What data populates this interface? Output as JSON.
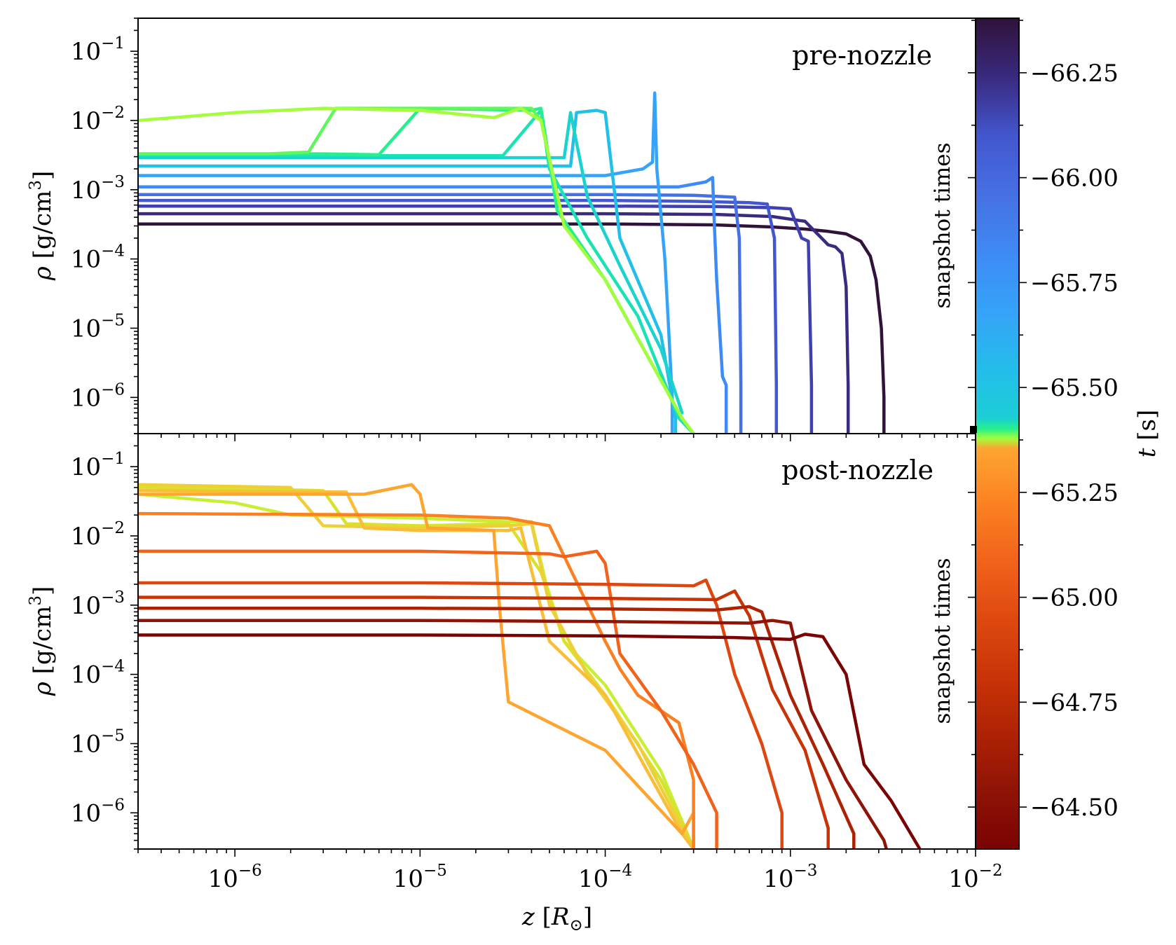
{
  "chart_data": [
    {
      "type": "line",
      "panel": "top",
      "annotation": "pre-nozzle",
      "xlabel": "z [R⊙]",
      "ylabel": "ρ [g/cm³]",
      "xscale": "log",
      "yscale": "log",
      "xlim": [
        3e-07,
        0.01
      ],
      "ylim": [
        3e-07,
        0.3
      ],
      "x_ticks": [
        {
          "value": 1e-06,
          "base": "10",
          "exp": "−6"
        },
        {
          "value": 1e-05,
          "base": "10",
          "exp": "−5"
        },
        {
          "value": 0.0001,
          "base": "10",
          "exp": "−4"
        },
        {
          "value": 0.001,
          "base": "10",
          "exp": "−3"
        },
        {
          "value": 0.01,
          "base": "10",
          "exp": "−2"
        }
      ],
      "y_ticks": [
        {
          "value": 1e-06,
          "base": "10",
          "exp": "−6"
        },
        {
          "value": 1e-05,
          "base": "10",
          "exp": "−5"
        },
        {
          "value": 0.0001,
          "base": "10",
          "exp": "−4"
        },
        {
          "value": 0.001,
          "base": "10",
          "exp": "−3"
        },
        {
          "value": 0.01,
          "base": "10",
          "exp": "−2"
        },
        {
          "value": 0.1,
          "base": "10",
          "exp": "−1"
        }
      ],
      "series": [
        {
          "color": "#30123b",
          "x": [
            3e-07,
            1e-05,
            0.0001,
            0.0004,
            0.0008,
            0.0012,
            0.0016,
            0.002,
            0.0024,
            0.0027,
            0.0029,
            0.0031,
            0.0032,
            0.0032
          ],
          "y": [
            0.00032,
            0.00032,
            0.00032,
            0.00031,
            0.00029,
            0.00027,
            0.00025,
            0.00023,
            0.00018,
            0.00011,
            5e-05,
            1e-05,
            1e-06,
            3e-07
          ]
        },
        {
          "color": "#3a2a80",
          "x": [
            3e-07,
            1e-05,
            0.0001,
            0.0004,
            0.0008,
            0.0012,
            0.0016,
            0.00175,
            0.0019,
            0.002,
            0.00205,
            0.00205
          ],
          "y": [
            0.00045,
            0.00045,
            0.00045,
            0.00044,
            0.00041,
            0.00035,
            0.00016,
            0.00015,
            0.00012,
            4e-05,
            1.5e-06,
            3e-07
          ]
        },
        {
          "color": "#4040b0",
          "x": [
            3e-07,
            1e-05,
            0.0001,
            0.0004,
            0.0008,
            0.001,
            0.00115,
            0.00125,
            0.0013,
            0.0013
          ],
          "y": [
            0.00058,
            0.00058,
            0.00058,
            0.00057,
            0.00055,
            0.00053,
            0.0002,
            0.00018,
            1.5e-06,
            3e-07
          ]
        },
        {
          "color": "#4357cf",
          "x": [
            3e-07,
            1e-05,
            0.0001,
            0.0003,
            0.0006,
            0.00075,
            0.00082,
            0.00084,
            0.00084
          ],
          "y": [
            0.0007,
            0.0007,
            0.0007,
            0.00068,
            0.00065,
            0.00062,
            0.0002,
            1.5e-06,
            3e-07
          ]
        },
        {
          "color": "#4671e3",
          "x": [
            3e-07,
            1e-05,
            0.0001,
            0.0003,
            0.0005,
            0.00053,
            0.00054,
            0.00054
          ],
          "y": [
            0.00085,
            0.00085,
            0.00085,
            0.00083,
            0.00078,
            0.0002,
            1.5e-06,
            3e-07
          ]
        },
        {
          "color": "#3e8bf5",
          "x": [
            3e-07,
            1e-05,
            0.0001,
            0.00025,
            0.00035,
            0.00038,
            0.00039,
            0.0004,
            0.00043,
            0.00045,
            0.00045
          ],
          "y": [
            0.0011,
            0.0011,
            0.0011,
            0.0011,
            0.0013,
            0.0015,
            0.00025,
            5e-05,
            2e-06,
            1.5e-06,
            3e-07
          ]
        },
        {
          "color": "#35a4f8",
          "x": [
            3e-07,
            1e-05,
            0.0001,
            0.00016,
            0.00018,
            0.000185,
            0.00019,
            0.00021,
            0.00022,
            0.00023,
            0.00023
          ],
          "y": [
            0.0016,
            0.0016,
            0.0016,
            0.002,
            0.0025,
            0.025,
            0.002,
            0.0001,
            1e-05,
            1e-06,
            3e-07
          ]
        },
        {
          "color": "#22bfe8",
          "x": [
            3e-07,
            1e-05,
            6.5e-05,
            7e-05,
            9e-05,
            0.0001,
            0.00012,
            0.0002,
            0.00024,
            0.00024
          ],
          "y": [
            0.0022,
            0.0022,
            0.0022,
            0.013,
            0.014,
            0.013,
            0.0002,
            8e-06,
            5e-07,
            3e-07
          ]
        },
        {
          "color": "#1ad3cf",
          "x": [
            3e-07,
            1e-05,
            6e-05,
            6.5e-05,
            8e-05,
            0.00012,
            0.0002,
            0.00026
          ],
          "y": [
            0.0029,
            0.0029,
            0.0029,
            0.013,
            0.0008,
            8e-05,
            5e-06,
            6e-07
          ]
        },
        {
          "color": "#1ae3b3",
          "x": [
            3e-07,
            1e-05,
            2.8e-05,
            4.5e-05,
            5e-05,
            8e-05,
            0.00015,
            0.00025,
            0.0003
          ],
          "y": [
            0.0031,
            0.0031,
            0.0031,
            0.014,
            0.002,
            0.0002,
            1.5e-05,
            5e-07,
            3e-07
          ]
        },
        {
          "color": "#26ef8e",
          "x": [
            3e-07,
            3e-06,
            6e-06,
            1e-05,
            4e-05,
            4.5e-05,
            5.5e-05,
            0.0001,
            0.00026,
            0.0003
          ],
          "y": [
            0.0033,
            0.0033,
            0.0032,
            0.015,
            0.014,
            0.015,
            0.0005,
            5e-05,
            5e-07,
            3e-07
          ]
        },
        {
          "color": "#5ef85d",
          "x": [
            3e-07,
            1.5e-06,
            2.5e-06,
            3.5e-06,
            1e-05,
            4e-05,
            4.5e-05,
            6e-05,
            0.0001,
            0.00026,
            0.0003
          ],
          "y": [
            0.0033,
            0.0033,
            0.0035,
            0.015,
            0.015,
            0.015,
            0.01,
            0.0003,
            5e-05,
            5e-07,
            3e-07
          ]
        },
        {
          "color": "#a3fd3c",
          "x": [
            3e-07,
            1e-06,
            3e-06,
            1e-05,
            2.5e-05,
            3.5e-05,
            4.5e-05,
            6e-05,
            0.0001,
            0.00026,
            0.0003
          ],
          "y": [
            0.01,
            0.013,
            0.015,
            0.014,
            0.011,
            0.015,
            0.01,
            0.0003,
            5e-05,
            5e-07,
            3e-07
          ]
        }
      ]
    },
    {
      "type": "line",
      "panel": "bottom",
      "annotation": "post-nozzle",
      "xlabel": "z [R⊙]",
      "ylabel": "ρ [g/cm³]",
      "xscale": "log",
      "yscale": "log",
      "xlim": [
        3e-07,
        0.01
      ],
      "ylim": [
        3e-07,
        0.3
      ],
      "series": [
        {
          "color": "#c8ef34",
          "x": [
            3e-07,
            1e-06,
            2e-06,
            1e-05,
            3e-05,
            4e-05,
            4.8e-05,
            6e-05,
            0.0001,
            0.0002,
            0.00027,
            0.0003
          ],
          "y": [
            0.04,
            0.03,
            0.02,
            0.018,
            0.016,
            0.016,
            0.002,
            0.0003,
            7e-05,
            4e-06,
            6e-07,
            3e-07
          ]
        },
        {
          "color": "#d9e22b",
          "x": [
            3e-07,
            1e-06,
            3e-06,
            4e-06,
            1e-05,
            3e-05,
            4.5e-05,
            6e-05,
            0.0001,
            0.0002,
            0.00027,
            0.0003
          ],
          "y": [
            0.05,
            0.048,
            0.045,
            0.015,
            0.014,
            0.015,
            0.003,
            0.0003,
            5e-05,
            3e-06,
            6e-07,
            3e-07
          ]
        },
        {
          "color": "#eecf3a",
          "x": [
            3e-07,
            2e-06,
            3e-06,
            1e-05,
            3e-05,
            4e-05,
            5e-05,
            8e-05,
            0.00015,
            0.00026,
            0.0003
          ],
          "y": [
            0.055,
            0.05,
            0.014,
            0.013,
            0.014,
            0.015,
            0.001,
            0.0001,
            1e-05,
            6e-07,
            3e-07
          ]
        },
        {
          "color": "#f9bd38",
          "x": [
            3e-07,
            4e-06,
            5e-06,
            1e-05,
            3e-05,
            3.5e-05,
            5e-05,
            0.0001,
            0.00026,
            0.0003
          ],
          "y": [
            0.045,
            0.043,
            0.013,
            0.012,
            0.012,
            0.013,
            0.0003,
            5e-05,
            5e-07,
            3e-07
          ]
        },
        {
          "color": "#fea530",
          "x": [
            3e-07,
            5e-06,
            9e-06,
            1e-05,
            1.1e-05,
            2.5e-05,
            2.7e-05,
            3e-05,
            0.0001,
            0.00026,
            0.0003,
            0.0003
          ],
          "y": [
            0.04,
            0.04,
            0.055,
            0.04,
            0.013,
            0.012,
            0.0008,
            4e-05,
            8e-06,
            5e-07,
            1e-06,
            3e-07
          ]
        },
        {
          "color": "#fb8022",
          "x": [
            3e-07,
            1e-05,
            3e-05,
            5e-05,
            0.0001,
            0.00012,
            0.00015,
            0.00025,
            0.0003,
            0.0003
          ],
          "y": [
            0.021,
            0.02,
            0.018,
            0.014,
            0.0003,
            0.00012,
            5e-05,
            2e-05,
            3e-06,
            3e-07
          ]
        },
        {
          "color": "#f1621a",
          "x": [
            3e-07,
            1e-05,
            5e-05,
            6e-05,
            9e-05,
            0.0001,
            0.00012,
            0.0002,
            0.0003,
            0.0004,
            0.0004
          ],
          "y": [
            0.006,
            0.006,
            0.0055,
            0.005,
            0.006,
            0.004,
            0.0002,
            3e-05,
            5e-06,
            1e-06,
            3e-07
          ]
        },
        {
          "color": "#de4810",
          "x": [
            3e-07,
            1e-05,
            0.0001,
            0.0003,
            0.00035,
            0.0004,
            0.0005,
            0.0007,
            0.0009,
            0.0009
          ],
          "y": [
            0.0021,
            0.0021,
            0.002,
            0.0019,
            0.0023,
            0.001,
            0.0001,
            1e-05,
            1e-06,
            3e-07
          ]
        },
        {
          "color": "#c93407",
          "x": [
            3e-07,
            1e-05,
            0.0001,
            0.0004,
            0.0005,
            0.0006,
            0.0008,
            0.0012,
            0.0016,
            0.0016
          ],
          "y": [
            0.0013,
            0.0013,
            0.00125,
            0.0012,
            0.0016,
            0.0007,
            6e-05,
            8e-06,
            6e-07,
            3e-07
          ]
        },
        {
          "color": "#ae2204",
          "x": [
            3e-07,
            1e-05,
            0.0001,
            0.0004,
            0.0006,
            0.0007,
            0.001,
            0.0015,
            0.0022,
            0.0022
          ],
          "y": [
            0.0009,
            0.0009,
            0.00088,
            0.00085,
            0.00095,
            0.0008,
            5e-05,
            5e-06,
            5e-07,
            3e-07
          ]
        },
        {
          "color": "#8f1306",
          "x": [
            3e-07,
            1e-05,
            0.0001,
            0.0006,
            0.0008,
            0.001,
            0.0013,
            0.002,
            0.0032,
            0.0033
          ],
          "y": [
            0.0006,
            0.0006,
            0.00058,
            0.00055,
            0.0006,
            0.00055,
            3e-05,
            3e-06,
            4e-07,
            3e-07
          ]
        },
        {
          "color": "#7a0403",
          "x": [
            3e-07,
            1e-05,
            0.0001,
            0.0005,
            0.001,
            0.0012,
            0.0015,
            0.002,
            0.0025,
            0.0035,
            0.005
          ],
          "y": [
            0.00037,
            0.00037,
            0.00036,
            0.00034,
            0.00032,
            0.00038,
            0.00035,
            0.0001,
            5e-06,
            1.5e-06,
            3e-07
          ]
        }
      ]
    },
    {
      "type": "colorbar",
      "label": "t [s]",
      "label_italic": "t",
      "label_unit": "[s]",
      "side_label_top": "snapshot times",
      "side_label_bottom": "snapshot times",
      "range": [
        -66.38,
        -64.4
      ],
      "split_value": -65.4,
      "ticks": [
        "−66.25",
        "−66.00",
        "−65.75",
        "−65.50",
        "−65.25",
        "−65.00",
        "−64.75",
        "−64.50"
      ],
      "tick_values": [
        -66.25,
        -66.0,
        -65.75,
        -65.5,
        -65.25,
        -65.0,
        -64.75,
        -64.5
      ],
      "top_gradient": [
        "#30123b",
        "#3a2a80",
        "#4357cf",
        "#4671e3",
        "#3e8bf5",
        "#35a4f8",
        "#22bfe8",
        "#1ad3cf"
      ],
      "mid_gradient": [
        "#1ad3cf",
        "#26ef8e",
        "#a3fd3c",
        "#fea530"
      ],
      "bottom_gradient": [
        "#fea530",
        "#fb8022",
        "#f1621a",
        "#de4810",
        "#c93407",
        "#ae2204",
        "#8f1306",
        "#7a0403"
      ]
    }
  ]
}
